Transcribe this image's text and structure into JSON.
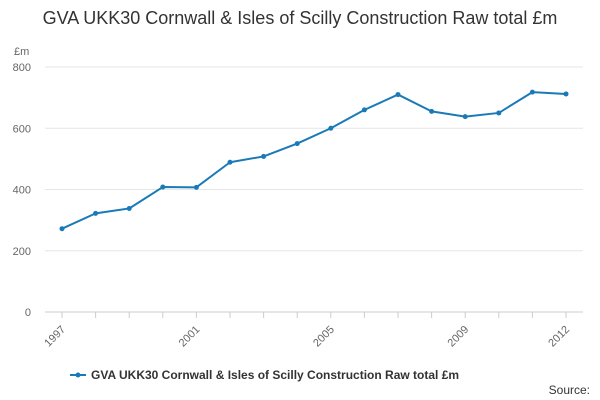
{
  "chart_data": {
    "type": "line",
    "title": "GVA UKK30 Cornwall & Isles of Scilly Construction Raw total £m",
    "ylabel": "£m",
    "xlabel": "",
    "ylim": [
      0,
      800
    ],
    "yticks": [
      0,
      200,
      400,
      600,
      800
    ],
    "xtick_labels": [
      "1997",
      "2001",
      "2005",
      "2009",
      "2012"
    ],
    "x": [
      1997,
      1998,
      1999,
      2000,
      2001,
      2002,
      2003,
      2004,
      2005,
      2006,
      2007,
      2008,
      2009,
      2010,
      2011,
      2012
    ],
    "series": [
      {
        "name": "GVA UKK30 Cornwall & Isles of Scilly Construction Raw total £m",
        "color": "#1a7ab8",
        "values": [
          272,
          322,
          338,
          408,
          407,
          489,
          508,
          550,
          600,
          660,
          710,
          655,
          638,
          650,
          718,
          712
        ]
      }
    ],
    "legend_position": "bottom",
    "grid": true,
    "source_label": "Source:"
  }
}
